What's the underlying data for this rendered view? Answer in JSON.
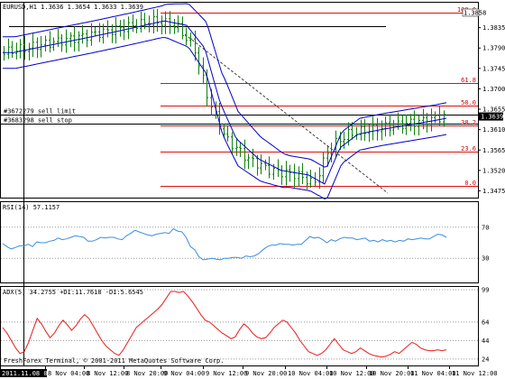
{
  "chart": {
    "symbol_header": "EURUSD,H1  1.3636 1.3654 1.3633 1.3639",
    "current_price": "1.3639",
    "colors": {
      "bollinger": "#0000cc",
      "rsi": "#3a8fe0",
      "adx": "#ee1a1a",
      "fibonacci": "#e01010",
      "candle": "#108010",
      "grid": "#9a9a9a"
    },
    "price_axis": {
      "labels": [
        "1.3835",
        "1.3790",
        "1.3745",
        "1.3700",
        "1.3655",
        "1.3610",
        "1.3565",
        "1.3520",
        "1.3475"
      ],
      "high_marker": "1.3858",
      "range": [
        1.346,
        1.389
      ]
    },
    "orders": [
      {
        "label": "#3672279 sell limit",
        "price": 1.3644
      },
      {
        "label": "#3683298 sell stop",
        "price": 1.3624
      }
    ],
    "fibonacci": {
      "levels": [
        {
          "label": "100.0",
          "price": 1.3868
        },
        {
          "label": "61.8",
          "price": 1.3712
        },
        {
          "label": "50.0",
          "price": 1.3664
        },
        {
          "label": "38.2",
          "price": 1.362
        },
        {
          "label": "23.6",
          "price": 1.3562
        },
        {
          "label": "0.0",
          "price": 1.3486
        }
      ]
    },
    "rsi": {
      "label": "RSI(14) 57.1157",
      "axis_labels": [
        "70",
        "30"
      ],
      "range": [
        0,
        100
      ],
      "values": [
        49,
        45,
        42,
        44,
        46,
        46,
        48,
        45,
        51,
        50,
        50,
        52,
        53,
        56,
        54,
        55,
        57,
        59,
        58,
        57,
        52,
        52,
        54,
        57,
        56,
        57,
        57,
        55,
        54,
        59,
        62,
        66,
        64,
        62,
        60,
        59,
        61,
        62,
        63,
        62,
        68,
        65,
        64,
        57,
        45,
        41,
        32,
        28,
        29,
        30,
        29,
        28,
        30,
        30,
        31,
        31,
        30,
        33,
        32,
        33,
        36,
        41,
        45,
        47,
        47,
        49,
        48,
        48,
        47,
        48,
        48,
        53,
        58,
        56,
        57,
        54,
        50,
        54,
        52,
        55,
        57,
        56,
        56,
        54,
        55,
        56,
        52,
        53,
        51,
        54,
        52,
        53,
        51,
        53,
        52,
        55,
        54,
        55,
        56,
        55,
        55,
        58,
        61,
        60,
        57
      ]
    },
    "adx": {
      "label": "ADX(5) 34.2755 +DI:11.7618 -DI:5.6545",
      "axis_labels": [
        "99",
        "64",
        "44",
        "24"
      ],
      "range": [
        18,
        99
      ],
      "values": [
        58,
        52,
        44,
        36,
        30,
        32,
        42,
        55,
        68,
        62,
        54,
        47,
        52,
        60,
        66,
        61,
        55,
        60,
        67,
        72,
        68,
        60,
        52,
        44,
        38,
        34,
        30,
        28,
        34,
        42,
        50,
        58,
        62,
        66,
        70,
        74,
        78,
        83,
        90,
        97,
        97,
        96,
        97,
        92,
        86,
        79,
        72,
        66,
        64,
        60,
        56,
        52,
        49,
        46,
        48,
        56,
        62,
        58,
        52,
        48,
        46,
        47,
        52,
        58,
        62,
        66,
        64,
        58,
        52,
        44,
        38,
        32,
        30,
        28,
        30,
        34,
        40,
        46,
        40,
        34,
        32,
        30,
        32,
        36,
        33,
        30,
        28,
        27,
        26,
        27,
        29,
        32,
        30,
        34,
        38,
        42,
        40,
        36,
        34,
        33,
        33,
        34,
        33,
        34
      ]
    },
    "time_axis": {
      "labels": [
        "2011.11.08 0:00",
        "8 Nov 04:00",
        "8 Nov 12:00",
        "8 Nov 20:00",
        "9 Nov 04:00",
        "9 Nov 12:00",
        "9 Nov 20:00",
        "10 Nov 04:00",
        "10 Nov 12:00",
        "10 Nov 20:00",
        "11 Nov 04:00",
        "11 Nov 12:00"
      ]
    },
    "copyright": "FreshForex Terminal, © 2001-2011 MetaQuotes Software Corp."
  }
}
